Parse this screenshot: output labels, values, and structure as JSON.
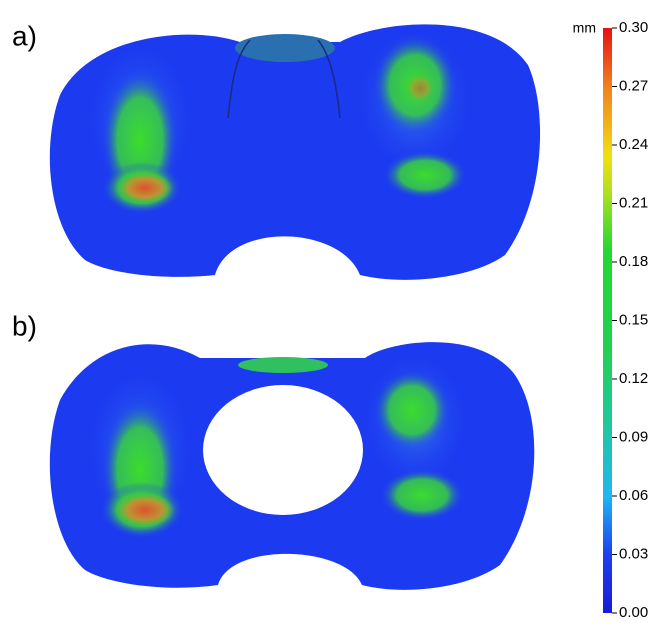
{
  "panels": [
    {
      "label": "a)"
    },
    {
      "label": "b)"
    }
  ],
  "colorbar": {
    "unit": "mm",
    "lim": [
      0,
      0.3
    ],
    "ticks": [
      {
        "value": 0,
        "label": "0.00"
      },
      {
        "value": 0.03,
        "label": "0.03"
      },
      {
        "value": 0.06,
        "label": "0.06"
      },
      {
        "value": 0.09,
        "label": "0.09"
      },
      {
        "value": 0.12,
        "label": "0.12"
      },
      {
        "value": 0.15,
        "label": "0.15"
      },
      {
        "value": 0.18,
        "label": "0.18"
      },
      {
        "value": 0.21,
        "label": "0.21"
      },
      {
        "value": 0.24,
        "label": "0.24"
      },
      {
        "value": 0.27,
        "label": "0.27"
      },
      {
        "value": 0.3,
        "label": "0.30"
      }
    ]
  }
}
